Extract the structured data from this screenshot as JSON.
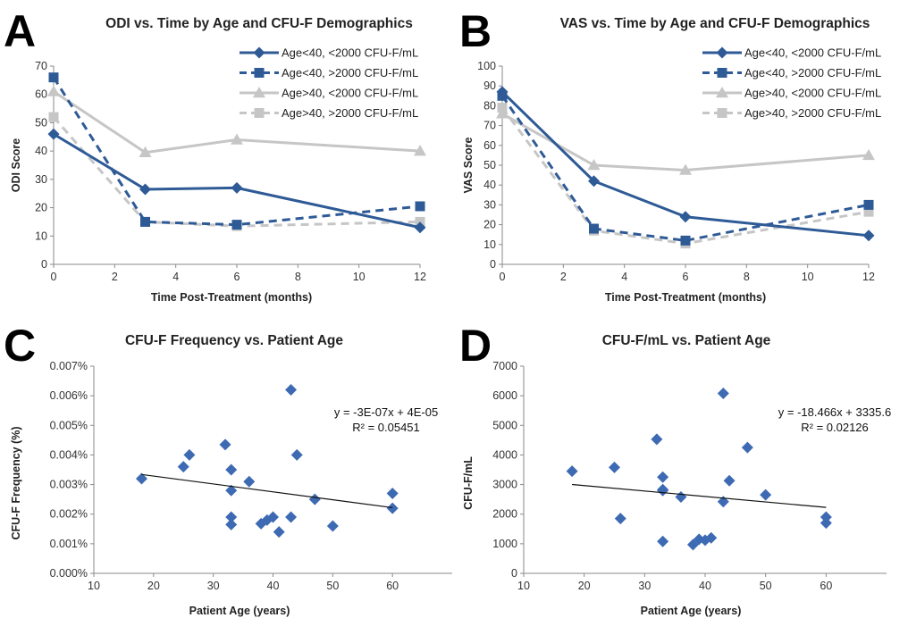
{
  "colors": {
    "dark": "#2e5a96",
    "light": "#c6c6c6",
    "scatter": "#3d6ab3",
    "axis": "#8a8a8a",
    "trend": "#111111"
  },
  "chart_data": [
    {
      "panel": "A",
      "type": "line",
      "title": "ODI vs. Time by Age and CFU-F Demographics",
      "xlabel": "Time Post-Treatment (months)",
      "ylabel": "ODI Score",
      "xlim": [
        0,
        12
      ],
      "ylim": [
        0,
        70
      ],
      "xticks": [
        0,
        2,
        4,
        6,
        8,
        10,
        12
      ],
      "yticks": [
        0,
        10,
        20,
        30,
        40,
        50,
        60,
        70
      ],
      "legend_position": "top-right",
      "x": [
        0,
        3,
        6,
        12
      ],
      "series": [
        {
          "name": "Age<40, <2000 CFU-F/mL",
          "values": [
            46,
            26.5,
            27,
            13
          ],
          "color": "dark",
          "dash": false,
          "marker": "diamond"
        },
        {
          "name": "Age<40, >2000 CFU-F/mL",
          "values": [
            66,
            15,
            14,
            20.5
          ],
          "color": "dark",
          "dash": true,
          "marker": "square"
        },
        {
          "name": "Age>40, <2000 CFU-F/mL",
          "values": [
            61,
            39.5,
            44,
            40
          ],
          "color": "light",
          "dash": false,
          "marker": "triangle"
        },
        {
          "name": "Age>40, >2000 CFU-F/mL",
          "values": [
            52,
            15,
            13.5,
            15
          ],
          "color": "light",
          "dash": true,
          "marker": "square"
        }
      ]
    },
    {
      "panel": "B",
      "type": "line",
      "title": "VAS vs. Time by Age and CFU-F Demographics",
      "xlabel": "Time Post-Treatment (months)",
      "ylabel": "VAS Score",
      "xlim": [
        0,
        12
      ],
      "ylim": [
        0,
        100
      ],
      "xticks": [
        0,
        2,
        4,
        6,
        8,
        10,
        12
      ],
      "yticks": [
        0,
        10,
        20,
        30,
        40,
        50,
        60,
        70,
        80,
        90,
        100
      ],
      "legend_position": "top-right",
      "x": [
        0,
        3,
        6,
        12
      ],
      "series": [
        {
          "name": "Age<40, <2000 CFU-F/mL",
          "values": [
            87,
            42,
            24,
            14.5
          ],
          "color": "dark",
          "dash": false,
          "marker": "diamond"
        },
        {
          "name": "Age<40, >2000 CFU-F/mL",
          "values": [
            85,
            18,
            12,
            30
          ],
          "color": "dark",
          "dash": true,
          "marker": "square"
        },
        {
          "name": "Age>40, <2000 CFU-F/mL",
          "values": [
            76,
            50,
            47.5,
            55
          ],
          "color": "light",
          "dash": false,
          "marker": "triangle"
        },
        {
          "name": "Age>40, >2000 CFU-F/mL",
          "values": [
            79,
            17,
            10.5,
            26.5
          ],
          "color": "light",
          "dash": true,
          "marker": "square"
        }
      ]
    },
    {
      "panel": "C",
      "type": "scatter",
      "title": "CFU-F Frequency vs. Patient Age",
      "xlabel": "Patient Age (years)",
      "ylabel": "CFU-F Frequency (%)",
      "xlim": [
        10,
        70
      ],
      "ylim": [
        0,
        0.007
      ],
      "xticks": [
        10,
        20,
        30,
        40,
        50,
        60
      ],
      "yticks": [
        0,
        0.001,
        0.002,
        0.003,
        0.004,
        0.005,
        0.006,
        0.007
      ],
      "ytick_labels": [
        "0.000%",
        "0.001%",
        "0.002%",
        "0.003%",
        "0.004%",
        "0.005%",
        "0.006%",
        "0.007%"
      ],
      "points": [
        [
          18,
          0.0032
        ],
        [
          25,
          0.0036
        ],
        [
          26,
          0.004
        ],
        [
          32,
          0.00435
        ],
        [
          33,
          0.0035
        ],
        [
          33,
          0.0028
        ],
        [
          33,
          0.0019
        ],
        [
          33,
          0.00165
        ],
        [
          36,
          0.0031
        ],
        [
          38,
          0.00168
        ],
        [
          39,
          0.0018
        ],
        [
          40,
          0.0019
        ],
        [
          41,
          0.0014
        ],
        [
          43,
          0.0062
        ],
        [
          43,
          0.0019
        ],
        [
          44,
          0.004
        ],
        [
          47,
          0.0025
        ],
        [
          50,
          0.0016
        ],
        [
          60,
          0.0027
        ],
        [
          60,
          0.0022
        ]
      ],
      "trendline": {
        "x": [
          18,
          60
        ],
        "y": [
          0.00334,
          0.00222
        ]
      },
      "equation": "y = -3E-07x + 4E-05",
      "r2": "R² = 0.05451"
    },
    {
      "panel": "D",
      "type": "scatter",
      "title": "CFU-F/mL vs. Patient Age",
      "xlabel": "Patient Age (years)",
      "ylabel": "CFU-F/mL",
      "xlim": [
        10,
        70
      ],
      "ylim": [
        0,
        7000
      ],
      "xticks": [
        10,
        20,
        30,
        40,
        50,
        60
      ],
      "yticks": [
        0,
        1000,
        2000,
        3000,
        4000,
        5000,
        6000,
        7000
      ],
      "points": [
        [
          18,
          3450
        ],
        [
          25,
          3580
        ],
        [
          26,
          1850
        ],
        [
          32,
          4530
        ],
        [
          33,
          3250
        ],
        [
          33,
          2830
        ],
        [
          33,
          2800
        ],
        [
          33,
          1080
        ],
        [
          36,
          2580
        ],
        [
          38,
          970
        ],
        [
          39,
          1150
        ],
        [
          40,
          1120
        ],
        [
          41,
          1200
        ],
        [
          43,
          6080
        ],
        [
          43,
          2420
        ],
        [
          44,
          3130
        ],
        [
          47,
          4250
        ],
        [
          50,
          2650
        ],
        [
          60,
          1900
        ],
        [
          60,
          1700
        ]
      ],
      "trendline": {
        "x": [
          18,
          60
        ],
        "y": [
          3003,
          2228
        ]
      },
      "equation": "y = -18.466x + 3335.6",
      "r2": "R² = 0.02126"
    }
  ]
}
